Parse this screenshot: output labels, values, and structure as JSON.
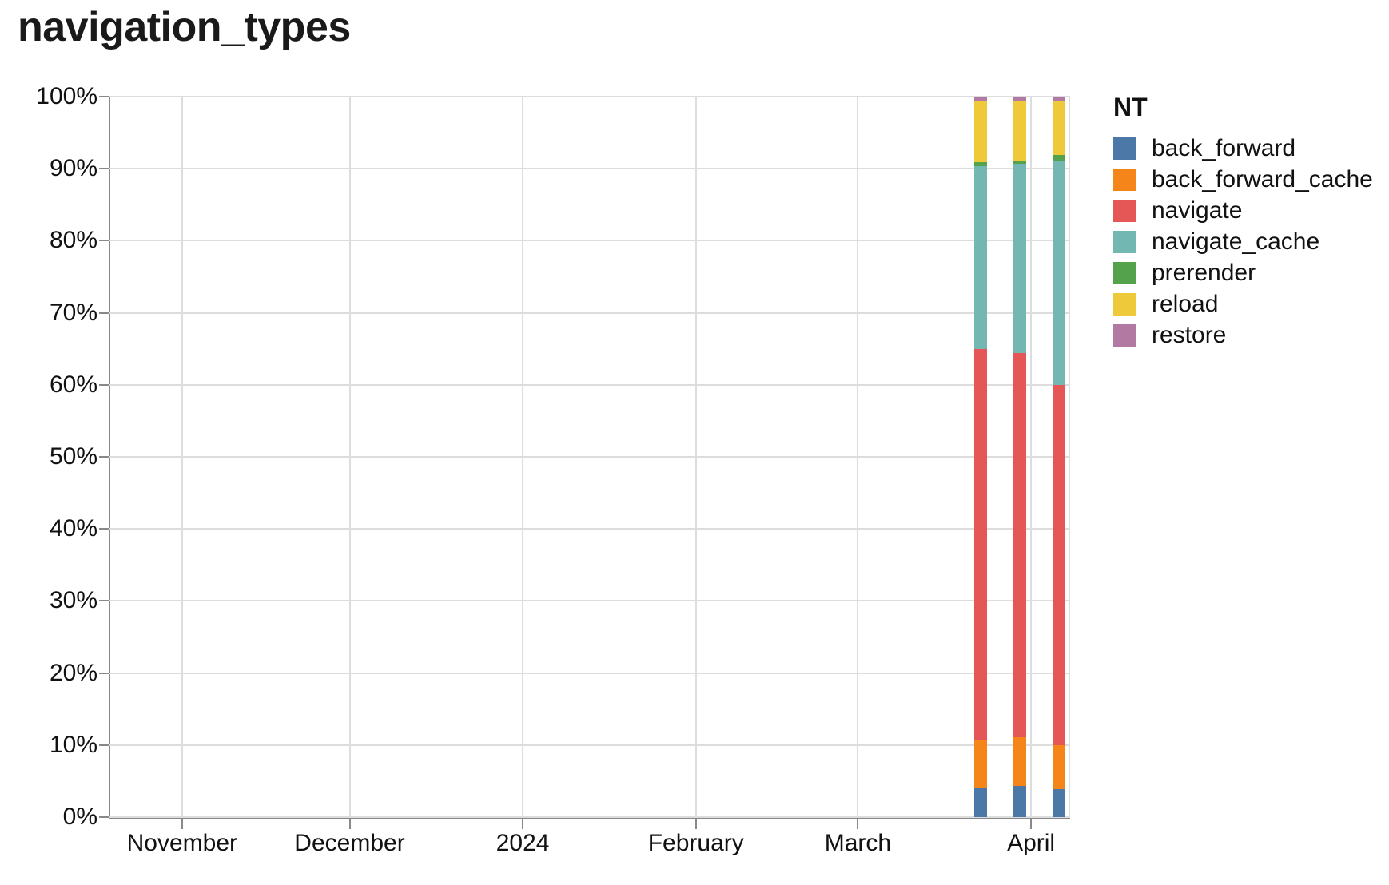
{
  "page": {
    "title": "navigation_types"
  },
  "chart_data": {
    "type": "bar",
    "stacked": true,
    "normalized": true,
    "title": "navigation_types",
    "xlabel": "",
    "ylabel": "",
    "legend_title": "NT",
    "legend_position": "right",
    "grid": true,
    "ylim": [
      0,
      100
    ],
    "y_ticks": [
      {
        "value": 0,
        "label": "0%"
      },
      {
        "value": 10,
        "label": "10%"
      },
      {
        "value": 20,
        "label": "20%"
      },
      {
        "value": 30,
        "label": "30%"
      },
      {
        "value": 40,
        "label": "40%"
      },
      {
        "value": 50,
        "label": "50%"
      },
      {
        "value": 60,
        "label": "60%"
      },
      {
        "value": 70,
        "label": "70%"
      },
      {
        "value": 80,
        "label": "80%"
      },
      {
        "value": 90,
        "label": "90%"
      },
      {
        "value": 100,
        "label": "100%"
      }
    ],
    "x_type": "time",
    "x_domain": [
      "2023-10-19",
      "2024-04-08"
    ],
    "x_ticks": [
      {
        "value": "2023-11-01",
        "label": "November"
      },
      {
        "value": "2023-12-01",
        "label": "December"
      },
      {
        "value": "2024-01-01",
        "label": "2024"
      },
      {
        "value": "2024-02-01",
        "label": "February"
      },
      {
        "value": "2024-03-01",
        "label": "March"
      },
      {
        "value": "2024-04-01",
        "label": "April"
      }
    ],
    "x": [
      "2024-03-23",
      "2024-03-30",
      "2024-04-06"
    ],
    "series": [
      {
        "name": "back_forward",
        "color": "#4c78a8",
        "values": [
          4.0,
          4.3,
          3.9
        ]
      },
      {
        "name": "back_forward_cache",
        "color": "#f58518",
        "values": [
          6.6,
          6.8,
          6.1
        ]
      },
      {
        "name": "navigate",
        "color": "#e45756",
        "values": [
          54.4,
          53.3,
          50.0
        ]
      },
      {
        "name": "navigate_cache",
        "color": "#72b7b2",
        "values": [
          25.4,
          26.3,
          31.0
        ]
      },
      {
        "name": "prerender",
        "color": "#54a24b",
        "values": [
          0.5,
          0.4,
          0.9
        ]
      },
      {
        "name": "reload",
        "color": "#eeca3b",
        "values": [
          8.6,
          8.4,
          7.6
        ]
      },
      {
        "name": "restore",
        "color": "#b279a2",
        "values": [
          0.5,
          0.5,
          0.5
        ]
      }
    ]
  }
}
